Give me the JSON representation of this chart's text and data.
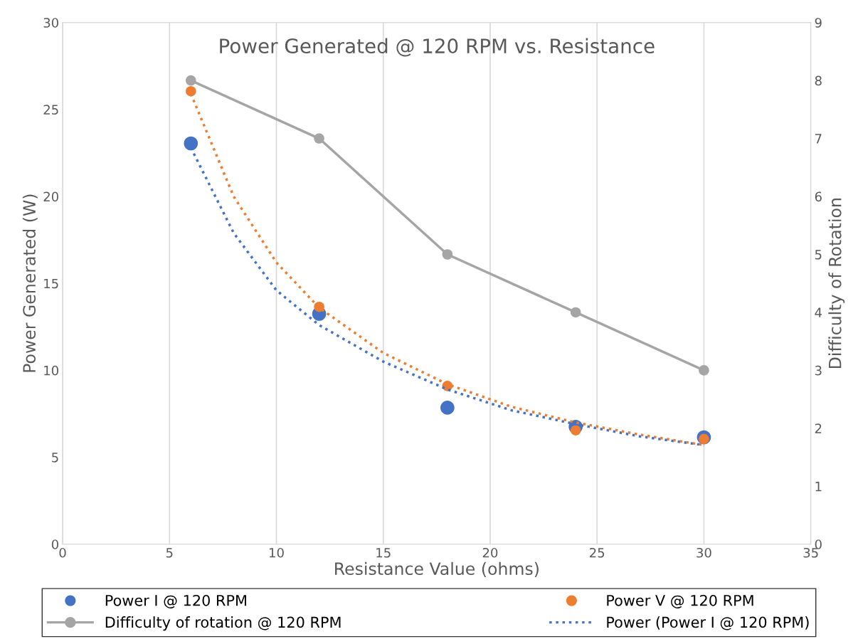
{
  "chart_data": {
    "type": "scatter",
    "title": "Power Generated @ 120 RPM vs. Resistance",
    "xlabel": "Resistance Value (ohms)",
    "ylabel": "Power Generated (W)",
    "y2label": "Difficulty of Rotation",
    "x": [
      6,
      12,
      18,
      24,
      30
    ],
    "series": [
      {
        "name": "Power I @ 120 RPM",
        "color": "#4472c4",
        "values": [
          23.05,
          13.25,
          7.85,
          6.75,
          6.15
        ],
        "marker": "circle"
      },
      {
        "name": "Power V @ 120 RPM",
        "color": "#ed7d31",
        "values": [
          26.05,
          13.65,
          9.1,
          6.55,
          6.05
        ],
        "marker": "circle"
      },
      {
        "name": "Difficulty of rotation @ 120 RPM",
        "type": "line",
        "color": "#a5a5a5",
        "values": [
          8,
          7,
          5,
          4,
          3
        ],
        "axis": "y2",
        "marker": "circle",
        "line_style": "solid"
      },
      {
        "name": "Power (Power I @ 120 RPM)",
        "type": "line",
        "color": "#4472c4",
        "x": [
          6,
          8,
          10,
          12,
          15,
          18,
          21,
          24,
          27,
          30
        ],
        "values": [
          22.8,
          17.9,
          14.6,
          12.6,
          10.5,
          8.9,
          7.7,
          6.9,
          6.2,
          5.7
        ],
        "marker": "none",
        "line_style": "dotted"
      },
      {
        "type": "line",
        "color": "#ed7d31",
        "x": [
          6,
          8,
          10,
          12,
          15,
          18,
          21,
          24,
          27,
          30
        ],
        "values": [
          25.9,
          20.0,
          16.2,
          13.6,
          11.0,
          9.2,
          7.9,
          7.0,
          6.3,
          5.7
        ],
        "marker": "none",
        "line_style": "dotted"
      }
    ],
    "xlim": [
      0,
      35
    ],
    "xticks": [
      0,
      5,
      10,
      15,
      20,
      25,
      30,
      35
    ],
    "ylim": [
      0,
      30
    ],
    "yticks": [
      0,
      5,
      10,
      15,
      20,
      25,
      30
    ],
    "y2lim": [
      0,
      9
    ],
    "y2ticks": [
      0,
      1,
      2,
      3,
      4,
      5,
      6,
      7,
      8,
      9
    ],
    "grid": "x",
    "legend": "bottom"
  }
}
